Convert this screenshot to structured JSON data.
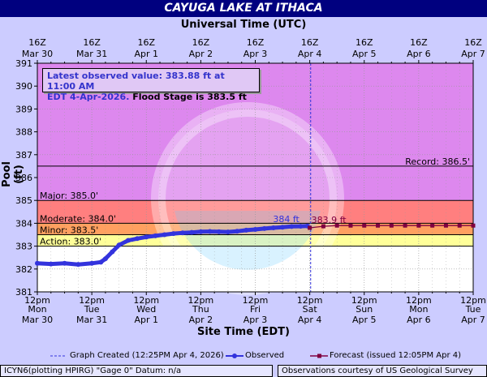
{
  "title": "CAYUGA LAKE AT ITHACA",
  "top_axis_title": "Universal Time (UTC)",
  "bottom_axis_title": "Site Time (EDT)",
  "y_axis_title": "Pool (ft)",
  "info": {
    "line1": "Latest observed value: 383.88 ft at 11:00 AM",
    "line2_blue": "EDT 4-Apr-2026.",
    "line2_black": " Flood Stage is 383.5 ft"
  },
  "legend": {
    "graph_created": "Graph Created (12:25PM Apr 4, 2026)",
    "observed": "Observed",
    "forecast": "Forecast (issued 12:05PM Apr 4)"
  },
  "footer": {
    "left": "ICYN6(plotting HPIRG) \"Gage 0\" Datum: n/a",
    "right": "Observations courtesy of US Geological Survey"
  },
  "colors": {
    "title_bg": "#00007f",
    "background": "#ccccff",
    "above_major": "#dd88ee",
    "major": "#ff7f7f",
    "moderate": "#ffa060",
    "minor": "#ffff99",
    "action": "#ffffbb",
    "below_action": "#ffffff",
    "observed": "#3333dd",
    "forecast": "#800040"
  },
  "chart_data": {
    "type": "line",
    "ylim": [
      381,
      391
    ],
    "yticks": [
      "381",
      "382",
      "383",
      "384",
      "385",
      "386",
      "387",
      "388",
      "389",
      "390",
      "391"
    ],
    "x_start": "Mar 30 12pm EDT",
    "x_end": "Apr 7 12pm EDT",
    "top_ticks": [
      {
        "h": 0,
        "l1": "16Z",
        "l2": "Mar 30"
      },
      {
        "h": 24,
        "l1": "16Z",
        "l2": "Mar 31"
      },
      {
        "h": 48,
        "l1": "16Z",
        "l2": "Apr 1"
      },
      {
        "h": 72,
        "l1": "16Z",
        "l2": "Apr 2"
      },
      {
        "h": 96,
        "l1": "16Z",
        "l2": "Apr 3"
      },
      {
        "h": 120,
        "l1": "16Z",
        "l2": "Apr 4"
      },
      {
        "h": 144,
        "l1": "16Z",
        "l2": "Apr 5"
      },
      {
        "h": 168,
        "l1": "16Z",
        "l2": "Apr 6"
      },
      {
        "h": 192,
        "l1": "16Z",
        "l2": "Apr 7"
      }
    ],
    "bottom_ticks": [
      {
        "h": 0,
        "l1": "12pm",
        "l2": "Mon",
        "l3": "Mar 30"
      },
      {
        "h": 24,
        "l1": "12pm",
        "l2": "Tue",
        "l3": "Mar 31"
      },
      {
        "h": 48,
        "l1": "12pm",
        "l2": "Wed",
        "l3": "Apr 1"
      },
      {
        "h": 72,
        "l1": "12pm",
        "l2": "Thu",
        "l3": "Apr 2"
      },
      {
        "h": 96,
        "l1": "12pm",
        "l2": "Fri",
        "l3": "Apr 3"
      },
      {
        "h": 120,
        "l1": "12pm",
        "l2": "Sat",
        "l3": "Apr 4"
      },
      {
        "h": 144,
        "l1": "12pm",
        "l2": "Sun",
        "l3": "Apr 5"
      },
      {
        "h": 168,
        "l1": "12pm",
        "l2": "Mon",
        "l3": "Apr 6"
      },
      {
        "h": 192,
        "l1": "12pm",
        "l2": "Tue",
        "l3": "Apr 7"
      }
    ],
    "stages": [
      {
        "name": "Major",
        "value": 385.0,
        "label": "Major: 385.0'"
      },
      {
        "name": "Moderate",
        "value": 384.0,
        "label": "Moderate: 384.0'"
      },
      {
        "name": "Minor",
        "value": 383.5,
        "label": "Minor: 383.5'"
      },
      {
        "name": "Action",
        "value": 383.0,
        "label": "Action: 383.0'"
      }
    ],
    "record": {
      "value": 386.5,
      "label": "Record: 386.5'"
    },
    "graph_created_hour": 120.4,
    "observed": {
      "name": "Observed",
      "label": "384 ft",
      "points": [
        [
          0,
          382.25
        ],
        [
          6,
          382.22
        ],
        [
          12,
          382.25
        ],
        [
          18,
          382.2
        ],
        [
          24,
          382.25
        ],
        [
          28,
          382.3
        ],
        [
          30,
          382.45
        ],
        [
          33,
          382.75
        ],
        [
          36,
          383.05
        ],
        [
          40,
          383.25
        ],
        [
          44,
          383.33
        ],
        [
          48,
          383.4
        ],
        [
          52,
          383.45
        ],
        [
          56,
          383.5
        ],
        [
          60,
          383.55
        ],
        [
          64,
          383.58
        ],
        [
          68,
          383.6
        ],
        [
          72,
          383.63
        ],
        [
          76,
          383.64
        ],
        [
          80,
          383.63
        ],
        [
          84,
          383.62
        ],
        [
          88,
          383.65
        ],
        [
          92,
          383.7
        ],
        [
          96,
          383.73
        ],
        [
          100,
          383.77
        ],
        [
          104,
          383.8
        ],
        [
          108,
          383.83
        ],
        [
          112,
          383.86
        ],
        [
          116,
          383.87
        ],
        [
          119,
          383.88
        ]
      ]
    },
    "forecast": {
      "name": "Forecast",
      "label": "383.9 ft",
      "points": [
        [
          120,
          383.8
        ],
        [
          126,
          383.87
        ],
        [
          132,
          383.9
        ],
        [
          138,
          383.9
        ],
        [
          144,
          383.9
        ],
        [
          150,
          383.9
        ],
        [
          156,
          383.9
        ],
        [
          162,
          383.9
        ],
        [
          168,
          383.9
        ],
        [
          174,
          383.9
        ],
        [
          180,
          383.9
        ],
        [
          186,
          383.9
        ],
        [
          192,
          383.9
        ]
      ]
    }
  }
}
